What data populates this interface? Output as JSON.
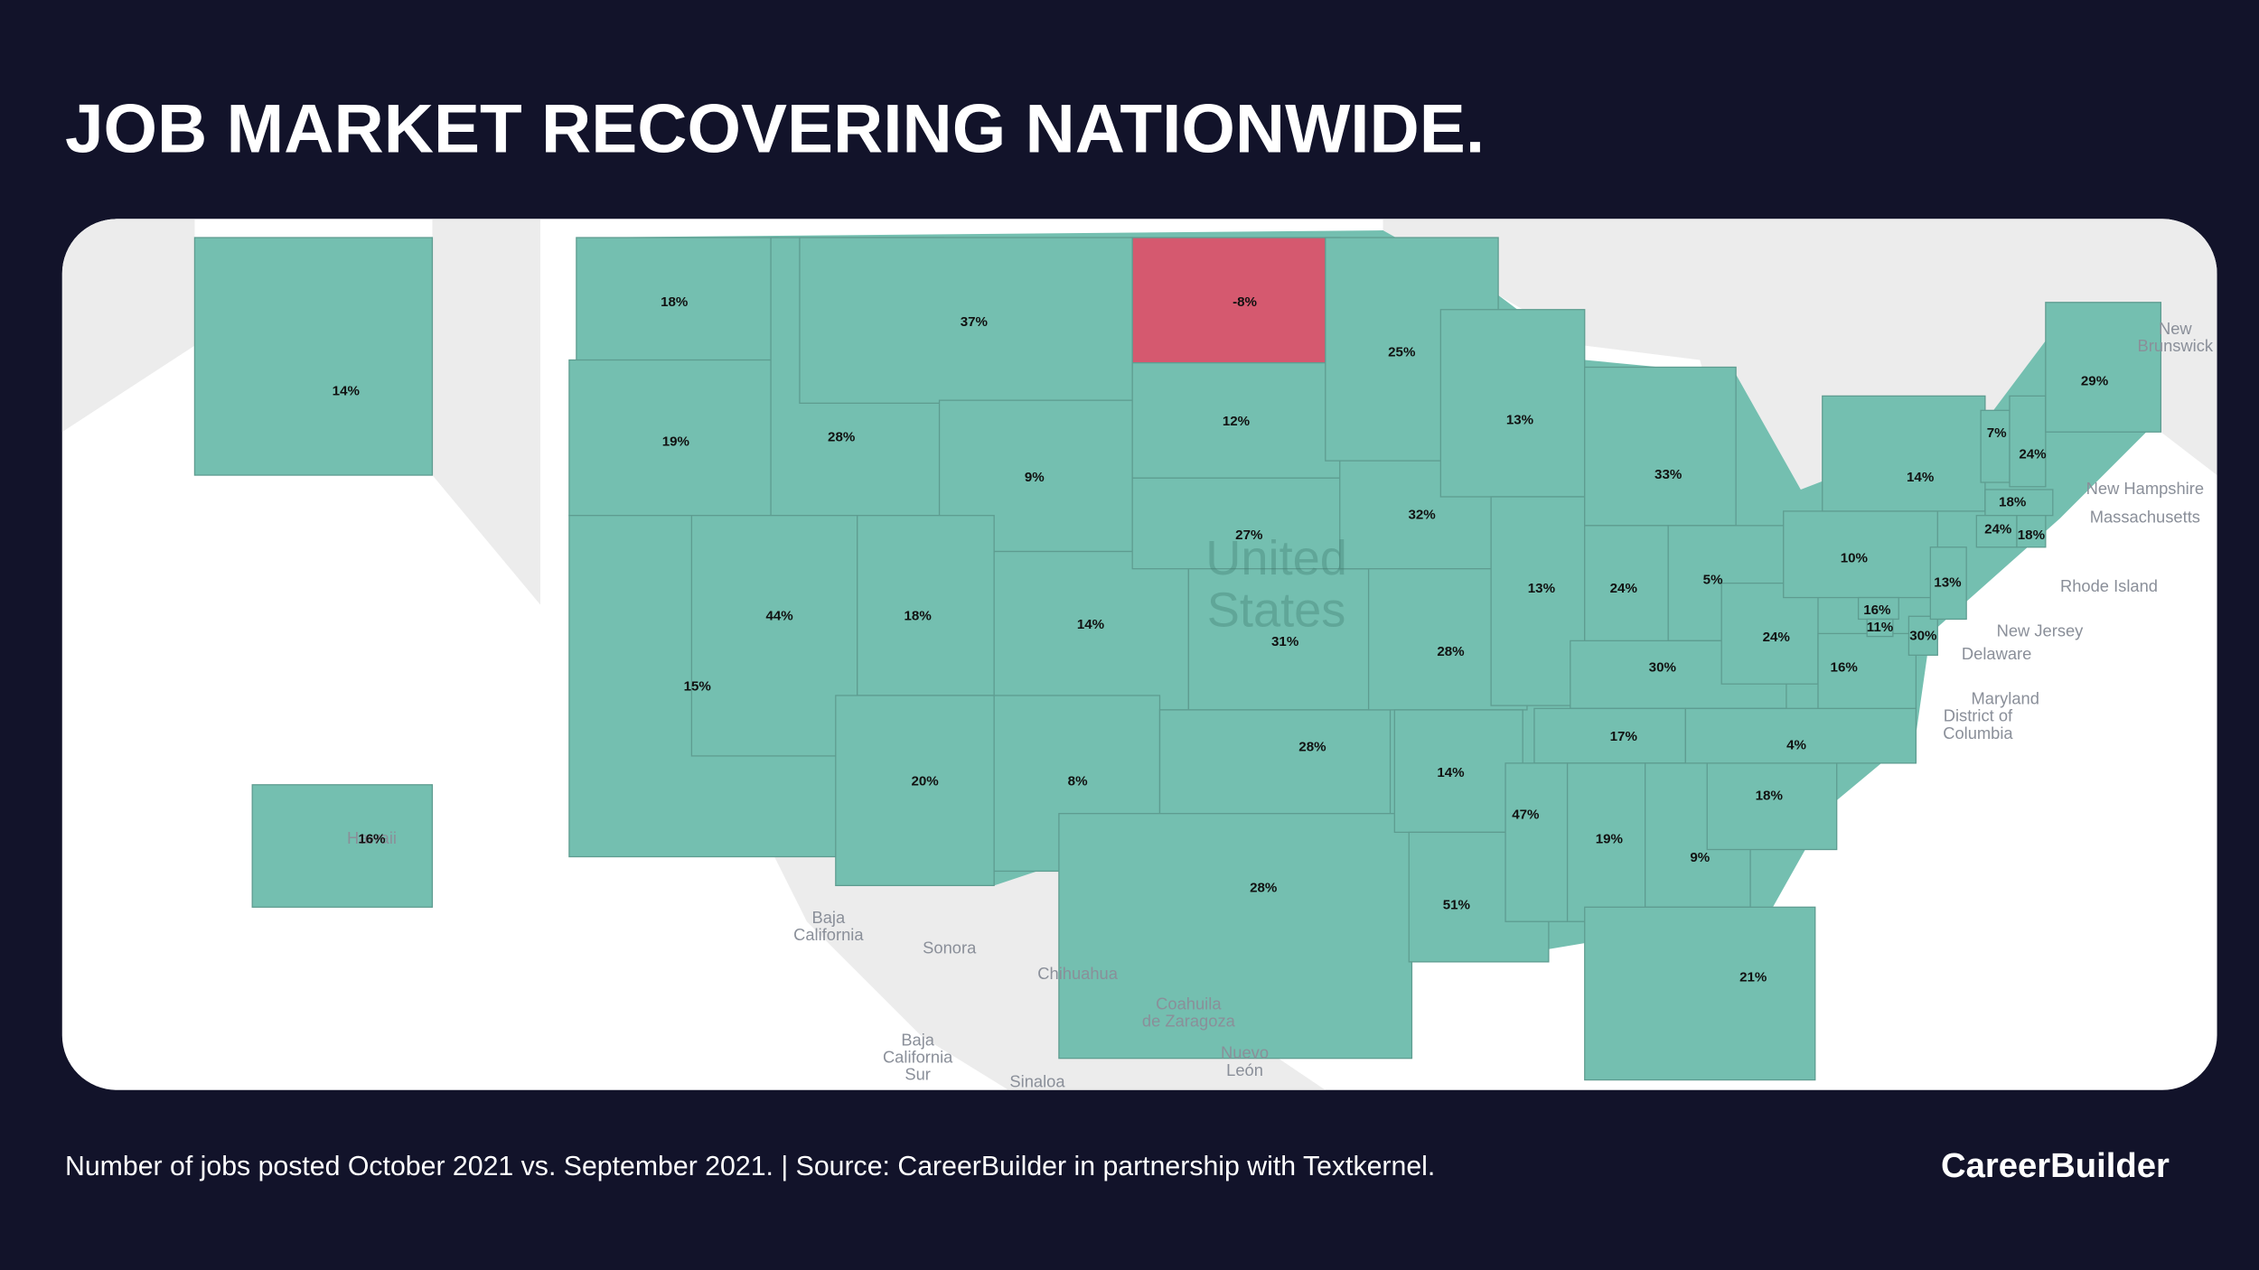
{
  "header": {
    "title": "JOB MARKET RECOVERING NATIONWIDE."
  },
  "map": {
    "color": "#74bfb0",
    "negative_color": "#d5596f",
    "values": [
      14,
      16,
      18,
      19,
      15,
      28,
      44,
      37,
      9,
      18,
      20,
      14,
      8,
      -8,
      12,
      27,
      31,
      28,
      28,
      25,
      32,
      28,
      14,
      51,
      13,
      13,
      33,
      24,
      5,
      30,
      17,
      47,
      19,
      9,
      21,
      18,
      4,
      24,
      16,
      10,
      14,
      16,
      11,
      30,
      13,
      7,
      24,
      29,
      18,
      24,
      18
    ],
    "value_labels": [
      "14%",
      "16%",
      "18%",
      "19%",
      "15%",
      "28%",
      "44%",
      "37%",
      "9%",
      "18%",
      "20%",
      "14%",
      "8%",
      "-8%",
      "12%",
      "27%",
      "31%",
      "28%",
      "28%",
      "25%",
      "32%",
      "28%",
      "14%",
      "51%",
      "13%",
      "13%",
      "33%",
      "24%",
      "5%",
      "30%",
      "17%",
      "47%",
      "19%",
      "9%",
      "21%",
      "18%",
      "4%",
      "24%",
      "16%",
      "10%",
      "14%",
      "16%",
      "11%",
      "30%",
      "13%",
      "7%",
      "24%",
      "29%",
      "18%",
      "24%",
      "18%"
    ],
    "country_label": [
      "United",
      "States"
    ],
    "place_labels": [
      [
        "Hawaii"
      ],
      [
        "New",
        "Brunswick"
      ],
      [
        "New Hampshire"
      ],
      [
        "Massachusetts"
      ],
      [
        "Rhode Island"
      ],
      [
        "New Jersey"
      ],
      [
        "Delaware"
      ],
      [
        "Maryland"
      ],
      [
        "District of",
        "Columbia"
      ],
      [
        "Baja",
        "California"
      ],
      [
        "Sonora"
      ],
      [
        "Chihuahua"
      ],
      [
        "Coahuila",
        "de Zaragoza"
      ],
      [
        "Baja",
        "California",
        "Sur"
      ],
      [
        "Nuevo",
        "León"
      ],
      [
        "Sinaloa"
      ]
    ]
  },
  "footer": {
    "note": "Number of jobs posted October 2021 vs. September 2021. | Source: CareerBuilder in partnership with Textkernel.",
    "brand": "CareerBuilder"
  }
}
